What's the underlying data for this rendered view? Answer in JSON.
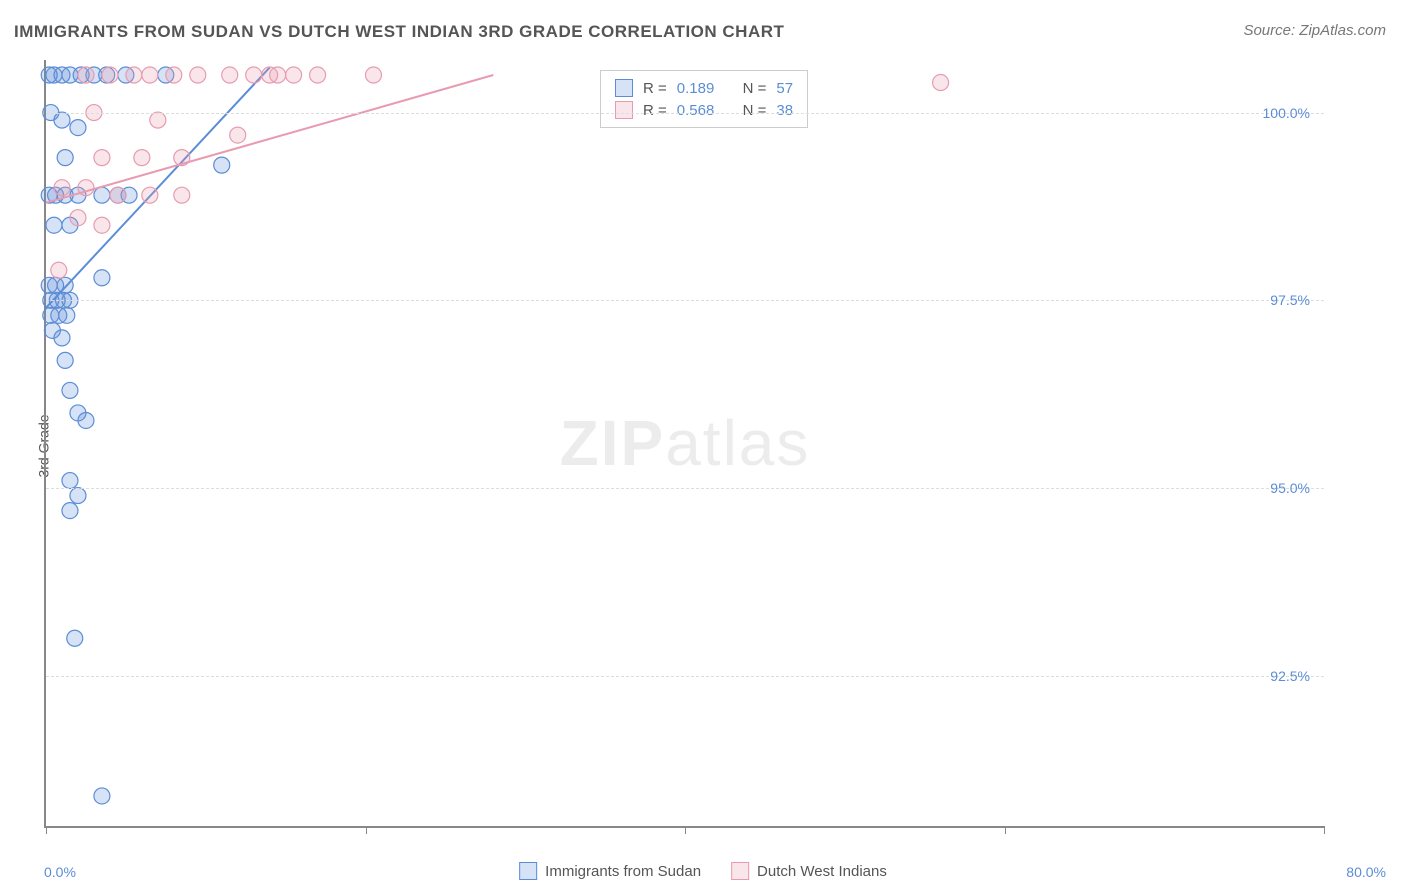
{
  "title": "IMMIGRANTS FROM SUDAN VS DUTCH WEST INDIAN 3RD GRADE CORRELATION CHART",
  "source": "Source: ZipAtlas.com",
  "y_axis_label": "3rd Grade",
  "watermark": {
    "bold": "ZIP",
    "light": "atlas"
  },
  "chart": {
    "type": "scatter",
    "background_color": "#ffffff",
    "grid_color": "#dddddd",
    "axis_color": "#888888",
    "xlim": [
      0,
      80
    ],
    "ylim": [
      90.5,
      100.7
    ],
    "x_ticks": [
      0,
      20,
      40,
      60,
      80
    ],
    "x_tick_labels": [
      "0.0%",
      "",
      "",
      "",
      "80.0%"
    ],
    "y_ticks": [
      92.5,
      95.0,
      97.5,
      100.0
    ],
    "y_tick_labels": [
      "92.5%",
      "95.0%",
      "97.5%",
      "100.0%"
    ],
    "tick_label_color": "#5b8dd6",
    "tick_label_fontsize": 14,
    "title_fontsize": 17,
    "title_color": "#555555",
    "marker_radius": 8,
    "marker_stroke_width": 1.2,
    "marker_fill_opacity": 0.25,
    "line_width": 2,
    "series": [
      {
        "name": "Immigrants from Sudan",
        "color": "#5b8dd6",
        "R": 0.189,
        "N": 57,
        "trend_line": {
          "x1": 0,
          "y1": 97.4,
          "x2": 14,
          "y2": 100.6
        },
        "points": [
          [
            0.2,
            100.5
          ],
          [
            0.5,
            100.5
          ],
          [
            1.0,
            100.5
          ],
          [
            1.5,
            100.5
          ],
          [
            2.2,
            100.5
          ],
          [
            3.0,
            100.5
          ],
          [
            3.8,
            100.5
          ],
          [
            5.0,
            100.5
          ],
          [
            7.5,
            100.5
          ],
          [
            0.3,
            100.0
          ],
          [
            1.0,
            99.9
          ],
          [
            2.0,
            99.8
          ],
          [
            1.2,
            99.4
          ],
          [
            11.0,
            99.3
          ],
          [
            0.2,
            98.9
          ],
          [
            0.6,
            98.9
          ],
          [
            1.2,
            98.9
          ],
          [
            2.0,
            98.9
          ],
          [
            3.5,
            98.9
          ],
          [
            4.5,
            98.9
          ],
          [
            5.2,
            98.9
          ],
          [
            0.5,
            98.5
          ],
          [
            1.5,
            98.5
          ],
          [
            0.2,
            97.7
          ],
          [
            0.6,
            97.7
          ],
          [
            1.2,
            97.7
          ],
          [
            3.5,
            97.8
          ],
          [
            0.3,
            97.5
          ],
          [
            0.7,
            97.5
          ],
          [
            1.1,
            97.5
          ],
          [
            1.5,
            97.5
          ],
          [
            0.3,
            97.3
          ],
          [
            0.8,
            97.3
          ],
          [
            1.3,
            97.3
          ],
          [
            0.4,
            97.1
          ],
          [
            1.0,
            97.0
          ],
          [
            1.2,
            96.7
          ],
          [
            1.5,
            96.3
          ],
          [
            2.0,
            96.0
          ],
          [
            2.5,
            95.9
          ],
          [
            1.5,
            95.1
          ],
          [
            2.0,
            94.9
          ],
          [
            1.5,
            94.7
          ],
          [
            1.8,
            93.0
          ],
          [
            3.5,
            90.9
          ]
        ]
      },
      {
        "name": "Dutch West Indians",
        "color": "#e89bb0",
        "R": 0.568,
        "N": 38,
        "trend_line": {
          "x1": 0,
          "y1": 98.8,
          "x2": 28,
          "y2": 100.5
        },
        "points": [
          [
            2.5,
            100.5
          ],
          [
            4.0,
            100.5
          ],
          [
            5.5,
            100.5
          ],
          [
            6.5,
            100.5
          ],
          [
            8.0,
            100.5
          ],
          [
            9.5,
            100.5
          ],
          [
            11.5,
            100.5
          ],
          [
            13.0,
            100.5
          ],
          [
            14.0,
            100.5
          ],
          [
            14.5,
            100.5
          ],
          [
            15.5,
            100.5
          ],
          [
            17.0,
            100.5
          ],
          [
            20.5,
            100.5
          ],
          [
            56.0,
            100.4
          ],
          [
            3.0,
            100.0
          ],
          [
            7.0,
            99.9
          ],
          [
            12.0,
            99.7
          ],
          [
            3.5,
            99.4
          ],
          [
            6.0,
            99.4
          ],
          [
            8.5,
            99.4
          ],
          [
            1.0,
            99.0
          ],
          [
            2.5,
            99.0
          ],
          [
            4.5,
            98.9
          ],
          [
            6.5,
            98.9
          ],
          [
            8.5,
            98.9
          ],
          [
            2.0,
            98.6
          ],
          [
            3.5,
            98.5
          ],
          [
            0.8,
            97.9
          ]
        ]
      }
    ]
  },
  "legend_stats_label_R": "R  =",
  "legend_stats_label_N": "N  =",
  "bottom_legend": [
    "Immigrants from Sudan",
    "Dutch West Indians"
  ]
}
